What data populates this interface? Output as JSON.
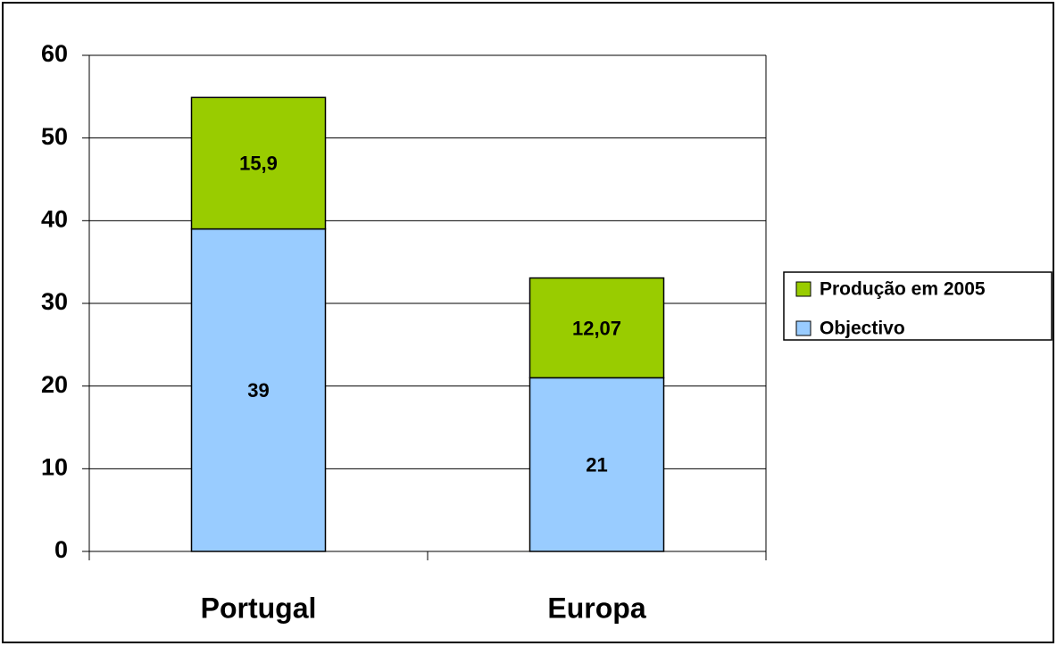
{
  "chart_data": {
    "type": "stacked_bar",
    "categories": [
      "Portugal",
      "Europa"
    ],
    "series": [
      {
        "name": "Objectivo",
        "color": "#99ccff",
        "values": [
          39,
          21
        ]
      },
      {
        "name": "Produção em 2005",
        "color": "#99cc00",
        "values": [
          15.9,
          12.07
        ],
        "value_labels": [
          "15,9",
          "12,07"
        ]
      }
    ],
    "ylim": [
      0,
      60
    ],
    "yticks": [
      0,
      10,
      20,
      30,
      40,
      50,
      60
    ],
    "grid": true,
    "legend": "right"
  }
}
